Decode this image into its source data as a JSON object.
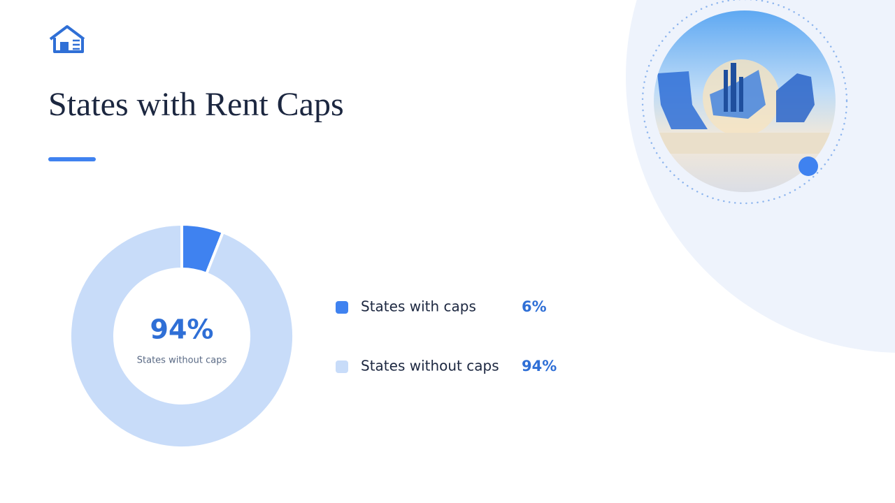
{
  "chart_data": {
    "type": "donut",
    "title": "States with Rent Caps",
    "categories": [
      "States with caps",
      "States without caps"
    ],
    "values": [
      6,
      94
    ],
    "value_labels": [
      "6%",
      "94%"
    ],
    "colors": [
      "#3f82f0",
      "#c8dcf9"
    ]
  }
}
